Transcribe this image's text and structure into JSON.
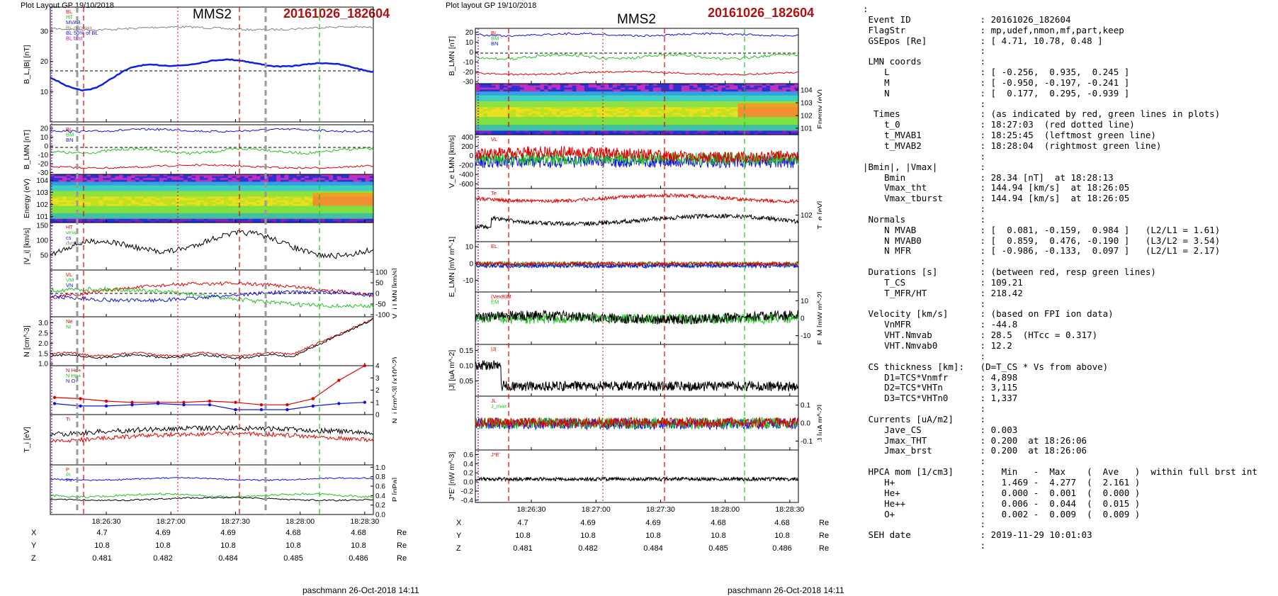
{
  "left_figure": {
    "header": "Plot Layout GP 19/10/2018",
    "spacecraft": "MMS2",
    "event": "20161026_182604",
    "footer": "paschmann 26-Oct-2018 14:11",
    "time_ticks": [
      "18:26:30",
      "18:27:00",
      "18:27:30",
      "18:28:00",
      "18:28:30"
    ],
    "coord_rows": [
      {
        "label": "X",
        "values": [
          "4.7",
          "4.69",
          "4.69",
          "4.68",
          "4.68"
        ],
        "unit": "Re"
      },
      {
        "label": "Y",
        "values": [
          "10.8",
          "10.8",
          "10.8",
          "10.8",
          "10.8"
        ],
        "unit": "Re"
      },
      {
        "label": "Z",
        "values": [
          "0.481",
          "0.482",
          "0.484",
          "0.485",
          "0.486"
        ],
        "unit": "Re"
      }
    ]
  },
  "right_figure": {
    "header": "Plot layout GP 19/10/2018",
    "spacecraft": "MMS2",
    "event": "20161026_182604",
    "footer": "paschmann 26-Oct-2018 14:11",
    "time_ticks": [
      "18:26:30",
      "18:27:00",
      "18:27:30",
      "18:28:00",
      "18:28:30"
    ],
    "coord_rows": [
      {
        "label": "X",
        "values": [
          "4.7",
          "4.69",
          "4.69",
          "4.68",
          "4.68"
        ],
        "unit": "Re"
      },
      {
        "label": "Y",
        "values": [
          "10.8",
          "10.8",
          "10.8",
          "10.8",
          "10.8"
        ],
        "unit": "Re"
      },
      {
        "label": "Z",
        "values": [
          "0.481",
          "0.482",
          "0.484",
          "0.485",
          "0.486"
        ],
        "unit": "Re"
      }
    ]
  },
  "colors": {
    "red": "#e00000",
    "green": "#22c022",
    "blue": "#1010e0",
    "black": "#000000",
    "gray": "#808080",
    "magenta": "#c000c0",
    "title_red": "#b01010"
  },
  "chart_data": [
    {
      "type": "line",
      "figure": "left",
      "x_range": [
        "18:26:04",
        "18:28:34"
      ],
      "markers": {
        "t_0": "18:27:03",
        "t_MVAB1": "18:25:45",
        "t_MVAB2": "18:28:04"
      },
      "panels": [
        {
          "ylabel": "B_L,|B| [nT]",
          "yticks": [
            "10",
            "20",
            "30"
          ],
          "ylim": [
            0,
            38
          ],
          "legend": [
            "BL",
            "HT",
            "MVAB",
            "BL minmax",
            "BL 50% of BL",
            "BL brst"
          ]
        },
        {
          "ylabel": "B_LMN [nT]",
          "yticks": [
            "-30",
            "-20",
            "-10",
            "0",
            "10",
            "20"
          ],
          "ylim": [
            -32,
            24
          ],
          "labels": [
            "BL",
            "BM",
            "BN"
          ]
        },
        {
          "type": "heatmap",
          "ylabel": "Energy (eV)",
          "yticks": [
            "10^1",
            "10^2",
            "10^3",
            "10^4"
          ]
        },
        {
          "ylabel": "|V_i| [km/s]",
          "yticks": [
            "50",
            "100",
            "150"
          ],
          "ylim": [
            0,
            160
          ],
          "legend": [
            "HT",
            "vmax",
            "cs",
            "dvmax"
          ]
        },
        {
          "ylabel": "V_i LMN [km/s]",
          "yticks": [
            "-100",
            "-50",
            "0",
            "50",
            "100"
          ],
          "ylim": [
            -110,
            110
          ],
          "labels": [
            "VL",
            "VM",
            "VN"
          ]
        },
        {
          "ylabel": "N [cm^-3]",
          "yticks": [
            "1.0",
            "1.5",
            "2.0",
            "2.5",
            "3.0"
          ],
          "ylim": [
            0.9,
            3.3
          ],
          "legend": [
            "Ne",
            "Ni"
          ]
        },
        {
          "ylabel": "N_i [cm^-3] (x10^-2)",
          "yticks": [
            "0",
            "1",
            "2",
            "3",
            "4"
          ],
          "ylim": [
            0,
            4
          ],
          "legend": [
            "N He+",
            "N Hp+",
            "N O+"
          ],
          "series": [
            {
              "name": "N Hp+",
              "x": [
                "18:26:06",
                "18:26:18",
                "18:26:30",
                "18:26:42",
                "18:26:54",
                "18:27:06",
                "18:27:18",
                "18:27:30",
                "18:27:42",
                "18:27:54",
                "18:28:06",
                "18:28:18",
                "18:28:30"
              ],
              "values": [
                1.4,
                1.3,
                1.1,
                1.0,
                1.0,
                1.0,
                1.1,
                1.0,
                0.8,
                0.8,
                1.3,
                2.8,
                4.0
              ]
            },
            {
              "name": "N O+",
              "x": [
                "18:26:06",
                "18:26:18",
                "18:26:30",
                "18:26:42",
                "18:26:54",
                "18:27:06",
                "18:27:18",
                "18:27:30",
                "18:27:42",
                "18:27:54",
                "18:28:06",
                "18:28:18",
                "18:28:30"
              ],
              "values": [
                0.9,
                0.7,
                0.7,
                0.8,
                0.9,
                0.8,
                0.8,
                0.4,
                0.4,
                0.4,
                0.7,
                0.9,
                1.0
              ]
            }
          ]
        },
        {
          "ylabel": "T_i [eV]",
          "legend": [
            "Ti"
          ]
        },
        {
          "ylabel": "P [nPa]",
          "yticks": [
            "0.0",
            "0.2",
            "0.4",
            "0.6",
            "0.8",
            "1.0"
          ],
          "ylim": [
            0,
            1.05
          ],
          "legend": [
            "P",
            "Pi",
            "Pe"
          ]
        }
      ]
    },
    {
      "type": "line",
      "figure": "right",
      "x_range": [
        "18:26:04",
        "18:28:34"
      ],
      "panels": [
        {
          "ylabel": "B_LMN [nT]",
          "yticks": [
            "-30",
            "-20",
            "-10",
            "0",
            "10",
            "20"
          ],
          "ylim": [
            -32,
            24
          ],
          "labels": [
            "BL",
            "BM",
            "BN"
          ]
        },
        {
          "type": "heatmap",
          "ylabel": "Energy (eV)",
          "yticks": [
            "10^1",
            "10^2",
            "10^3",
            "10^4"
          ]
        },
        {
          "ylabel": "V_e LMN [km/s]",
          "yticks": [
            "-600",
            "-400",
            "-200",
            "0",
            "200",
            "400"
          ],
          "ylim": [
            -700,
            450
          ],
          "labels": [
            "VL"
          ]
        },
        {
          "ylabel": "T_e [eV]",
          "yticks": [
            "10^2"
          ],
          "legend": [
            "Te"
          ]
        },
        {
          "ylabel": "E_LMN [mV m^-1]",
          "yticks": [
            "-10",
            "0",
            "10"
          ],
          "ylim": [
            -17,
            13
          ],
          "labels": [
            "EL"
          ]
        },
        {
          "ylabel": "E_M [mW m^-2]",
          "yticks": [
            "-10",
            "0",
            "10"
          ],
          "ylim": [
            -15,
            15
          ],
          "legend": [
            "(VexB)M",
            "EM"
          ]
        },
        {
          "ylabel": "|J| [uA m^-2]",
          "yticks": [
            "0.05",
            "0.10",
            "0.15"
          ],
          "ylim": [
            0,
            0.17
          ],
          "legend": [
            "|J|"
          ]
        },
        {
          "ylabel": "J [uA m^-2]",
          "yticks": [
            "-0.1",
            "0.0",
            "0.1"
          ],
          "ylim": [
            -0.15,
            0.15
          ],
          "legend": [
            "JL",
            "J_max"
          ]
        },
        {
          "ylabel": "J*E' [nW m^-3]",
          "yticks": [
            "-0.4",
            "-0.2",
            "0.0",
            "0.2",
            "0.4",
            "0.6"
          ],
          "ylim": [
            -0.45,
            0.7
          ],
          "legend": [
            "J*E'"
          ]
        }
      ]
    }
  ],
  "info_lines": [
    ":",
    " Event ID             : 20161026_182604",
    " FlagStr              : mp,udef,nmon,mf,part,keep",
    " GSEpos [Re]          : [ 4.71, 10.78, 0.48 ]",
    "                      :",
    " LMN coords           :",
    "    L                 : [ -0.256,  0.935,  0.245 ]",
    "    M                 : [ -0.950, -0.197, -0.241 ]",
    "    N                 : [  0.177,  0.295, -0.939 ]",
    "                      :",
    "  Times               : (as indicated by red, green lines in plots)",
    "    t_0               : 18:27:03  (red dotted line)",
    "    t_MVAB1           : 18:25:45  (leftmost green line)",
    "    t_MVAB2           : 18:28:04  (rightmost green line)",
    "                      :",
    "|Bmin|, |Vmax|        :",
    "    Bmin              : 28.34 [nT]  at 18:28:13",
    "    Vmax_tht          : 144.94 [km/s]  at 18:26:05",
    "    Vmax_tburst       : 144.94 [km/s]  at 18:26:05",
    "                      :",
    " Normals              :",
    "    N MVAB            : [  0.081, -0.159,  0.984 ]   (L2/L1 = 1.61)",
    "    N MVAB0           : [  0.859,  0.476, -0.190 ]   (L3/L2 = 3.54)",
    "    N MFR             : [ -0.986, -0.133,  0.097 ]   (L2/L1 = 2.17)",
    "                      :",
    " Durations [s]        : (between red, resp green lines)",
    "    T_CS              : 109.21",
    "    T_MFR/HT          : 218.42",
    "                      :",
    " Velocity [km/s]      : (based on FPI ion data)",
    "    VnMFR             : -44.8",
    "    VHT.Nmvab         : 28.5  (HTcc = 0.317)",
    "    VHT.Nmvab0        : 12.2",
    "                      :",
    " CS thickness [km]:   (D=T_CS * Vs from above)",
    "    D1=TCS*Vnmfr      : 4,898",
    "    D2=TCS*VHTn       : 3,115",
    "    D3=TCS*VHTn0      : 1,337",
    "                      :",
    " Currents [uA/m2]     :",
    "    Jave_CS           : 0.003",
    "    Jmax_THT          : 0.200  at 18:26:06",
    "    Jmax_brst         : 0.200  at 18:26:06",
    "                      :",
    " HPCA mom [1/cm3]     :   Min   -  Max    (  Ave   )  within full brst int",
    "    H+                :   1.469 -  4.277  (  2.161 )",
    "    He+               :   0.000 -  0.001  (  0.000 )",
    "    He++              :   0.006 -  0.044  (  0.015 )",
    "    O+                :   0.002 -  0.009  (  0.009 )",
    "                      :",
    " SEH date             : 2019-11-29 10:01:03",
    "                      :"
  ]
}
